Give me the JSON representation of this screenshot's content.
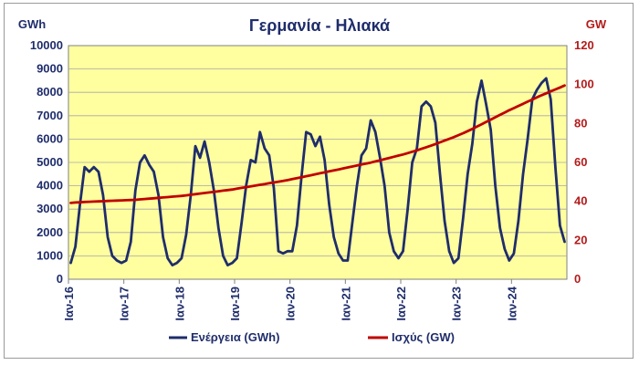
{
  "chart_data": {
    "type": "line",
    "title": "Γερμανία - Ηλιακά",
    "left_axis": {
      "unit": "GWh",
      "min": 0,
      "max": 10000,
      "step": 1000,
      "ticks": [
        "0",
        "1000",
        "2000",
        "3000",
        "4000",
        "5000",
        "6000",
        "7000",
        "8000",
        "9000",
        "10000"
      ]
    },
    "right_axis": {
      "unit": "GW",
      "min": 0,
      "max": 120,
      "step": 20,
      "ticks": [
        "0",
        "20",
        "40",
        "60",
        "80",
        "100",
        "120"
      ]
    },
    "x_labels": [
      "Ιαν-16",
      "Ιαν-17",
      "Ιαν-18",
      "Ιαν-19",
      "Ιαν-20",
      "Ιαν-21",
      "Ιαν-22",
      "Ιαν-23",
      "Ιαν-24"
    ],
    "x_start": "2016-01",
    "grid": true,
    "legend_position": "bottom",
    "plot_background": "#ffffa0",
    "series": [
      {
        "name": "Ενέργεια (GWh)",
        "axis": "left",
        "color": "#1f2d6b",
        "values": [
          700,
          1400,
          3200,
          4800,
          4600,
          4800,
          4600,
          3600,
          1800,
          1000,
          800,
          700,
          800,
          1600,
          3800,
          5000,
          5300,
          4900,
          4600,
          3600,
          1800,
          900,
          600,
          700,
          900,
          1900,
          3600,
          5700,
          5200,
          5900,
          5000,
          3800,
          2200,
          1000,
          600,
          700,
          900,
          2400,
          4000,
          5100,
          5000,
          6300,
          5600,
          5300,
          3900,
          1200,
          1100,
          1200,
          1200,
          2300,
          4400,
          6300,
          6200,
          5700,
          6100,
          5100,
          3200,
          1800,
          1100,
          800,
          800,
          2400,
          4000,
          5300,
          5600,
          6800,
          6300,
          5200,
          4000,
          2000,
          1200,
          900,
          1200,
          3000,
          5000,
          5600,
          7400,
          7600,
          7400,
          6700,
          4500,
          2500,
          1200,
          700,
          900,
          2600,
          4500,
          5800,
          7600,
          8500,
          7500,
          6400,
          4000,
          2200,
          1300,
          800,
          1100,
          2500,
          4500,
          6000,
          7700,
          8100,
          8400,
          8600,
          7700,
          4800,
          2300,
          1600
        ]
      },
      {
        "name": "Ισχύς (GW)",
        "axis": "right",
        "color": "#c00000",
        "values": [
          39.2,
          39.4,
          39.5,
          39.7,
          39.8,
          39.9,
          40.0,
          40.1,
          40.2,
          40.3,
          40.4,
          40.5,
          40.6,
          40.7,
          40.8,
          41.0,
          41.2,
          41.4,
          41.6,
          41.8,
          42.0,
          42.2,
          42.4,
          42.6,
          42.8,
          43.1,
          43.4,
          43.7,
          44.0,
          44.3,
          44.6,
          44.9,
          45.2,
          45.5,
          45.8,
          46.1,
          46.5,
          46.9,
          47.3,
          47.7,
          48.1,
          48.5,
          48.9,
          49.3,
          49.7,
          50.1,
          50.5,
          50.9,
          51.4,
          51.9,
          52.4,
          52.9,
          53.4,
          53.9,
          54.4,
          54.9,
          55.4,
          55.9,
          56.4,
          56.9,
          57.4,
          57.9,
          58.4,
          58.9,
          59.4,
          59.9,
          60.5,
          61.1,
          61.7,
          62.3,
          62.9,
          63.5,
          64.1,
          64.8,
          65.5,
          66.2,
          67.0,
          67.8,
          68.6,
          69.4,
          70.3,
          71.2,
          72.1,
          73.0,
          74.0,
          75.0,
          76.1,
          77.2,
          78.4,
          79.6,
          80.8,
          82.0,
          83.2,
          84.4,
          85.6,
          86.8,
          87.9,
          89.0,
          90.1,
          91.2,
          92.3,
          93.4,
          94.5,
          95.5,
          96.5,
          97.5,
          98.5,
          99.5
        ]
      }
    ]
  }
}
